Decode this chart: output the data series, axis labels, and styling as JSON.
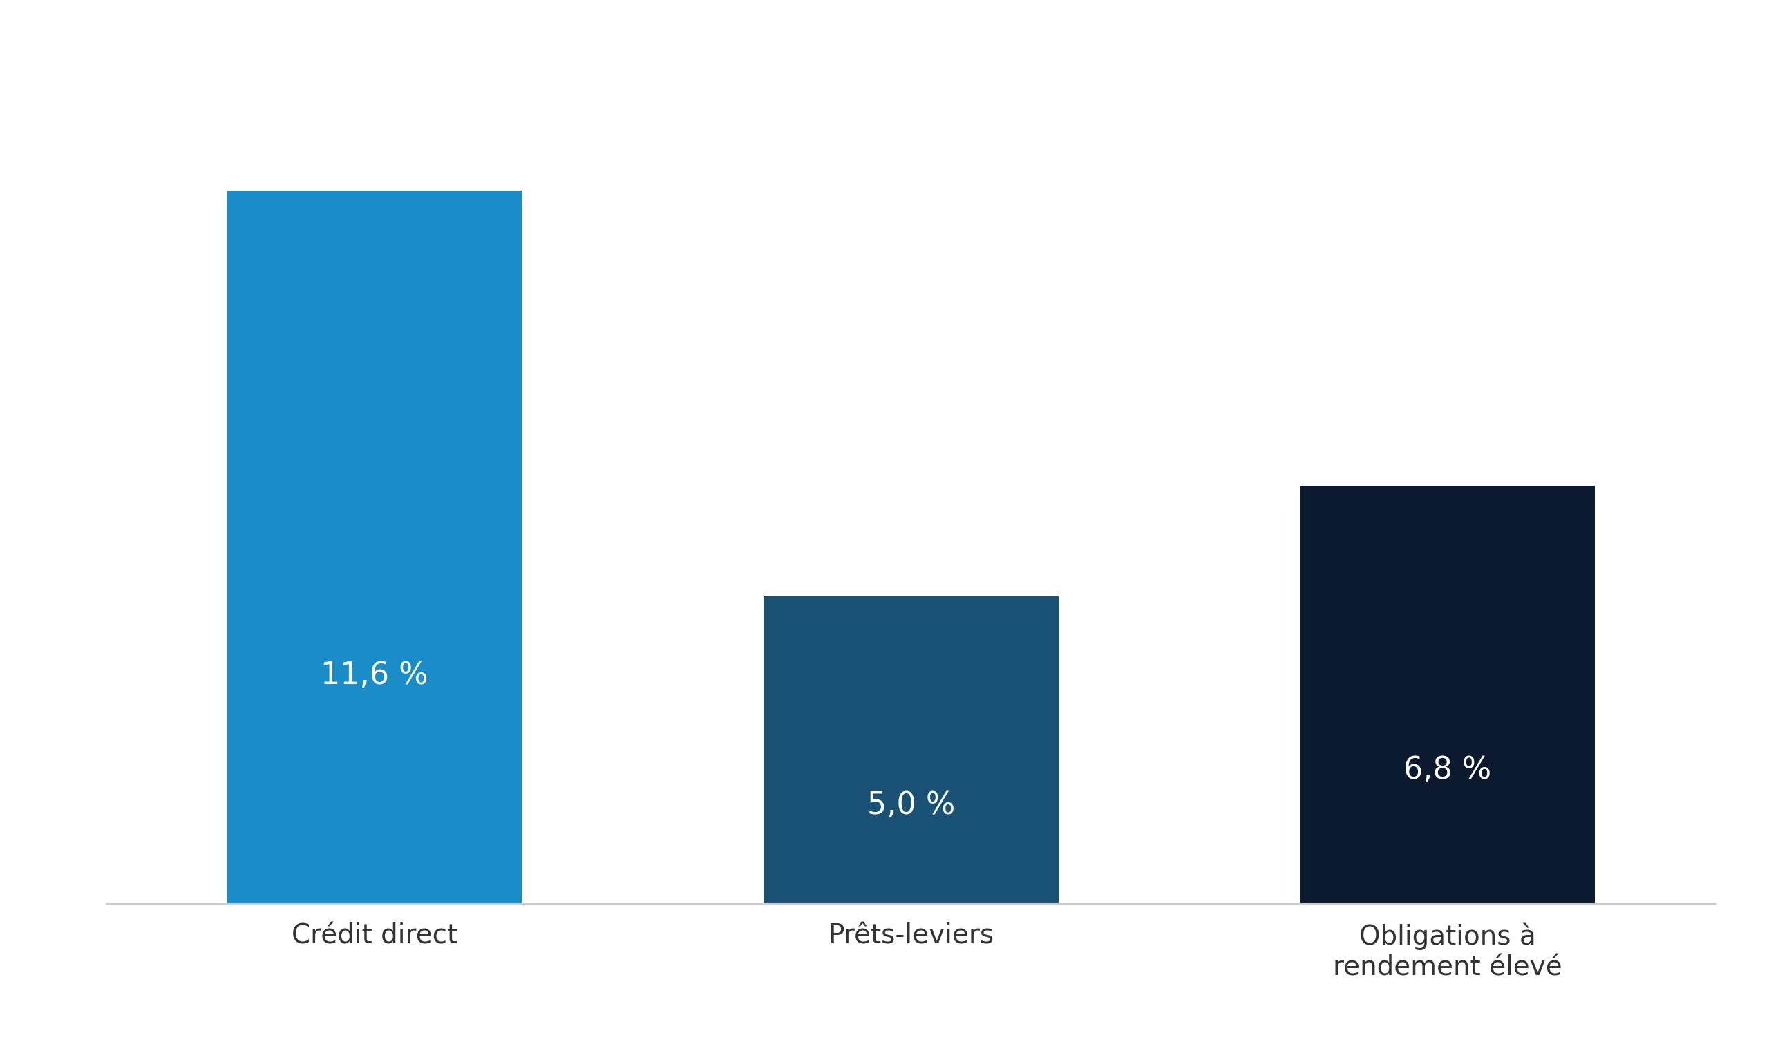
{
  "categories": [
    "Crédit direct",
    "Prêts-leviers",
    "Obligations à\nrendement élevé"
  ],
  "values": [
    11.6,
    5.0,
    6.8
  ],
  "labels": [
    "11,6 %",
    "5,0 %",
    "6,8 %"
  ],
  "bar_colors": [
    "#1a8dc8",
    "#1a5276",
    "#0b1a2e"
  ],
  "background_color": "#ffffff",
  "label_color": "#ffffff",
  "label_fontsize": 32,
  "tick_fontsize": 28,
  "bar_width": 0.55,
  "ylim": [
    0,
    13.5
  ],
  "x_positions": [
    0.5,
    1.5,
    2.5
  ],
  "xlim": [
    0.0,
    3.0
  ]
}
